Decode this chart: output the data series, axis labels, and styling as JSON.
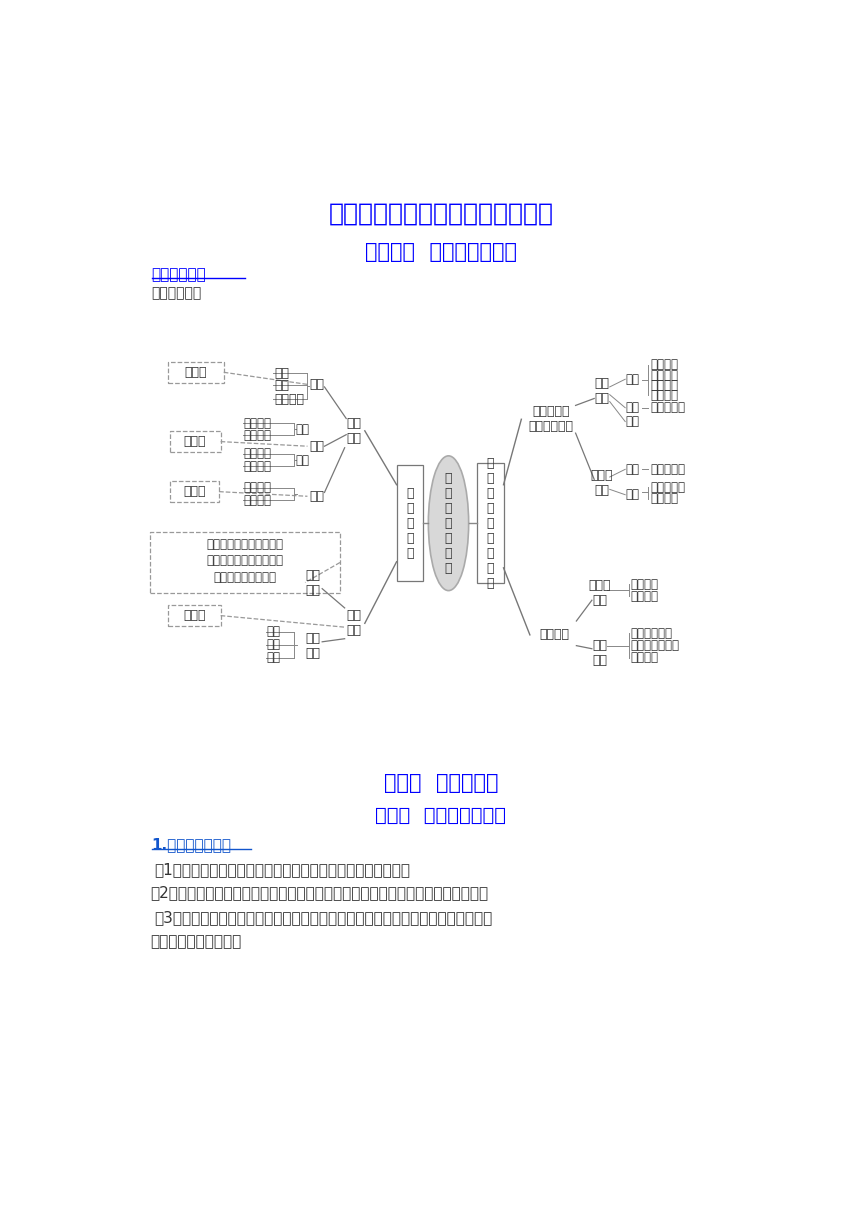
{
  "bg_color": "#ffffff",
  "title": "九年级下册道德与法治知识点汇总",
  "title_color": "#0000ff",
  "title_fontsize": 18,
  "unit_title": "第一单元  我们共同的世界",
  "unit_title_color": "#0000ff",
  "unit_title_fontsize": 15,
  "section_label": "单元思维导图",
  "section_label_color": "#0000ff",
  "section_label_fontsize": 11,
  "sdt_label": "【思维导图】",
  "sdt_label_color": "#333333",
  "sdt_label_fontsize": 10,
  "lesson_title": "第一课  同住地球村",
  "lesson_title_color": "#0000ff",
  "lesson_title_fontsize": 15,
  "frame_title": "第一框  开放互动的世界",
  "frame_title_color": "#0000ff",
  "frame_title_fontsize": 14,
  "point1_title": "1.当今世界的特点",
  "point1_title_color": "#1155cc",
  "point1_title_fontsize": 11,
  "point1_item1": "（1）开放的世界。（开放程度不断加深，开放范围不断扩展）",
  "point1_item2": "（2）发展的世界。（新技术新经济新业态蓬勃发展，正经历大发展大变革大调整）",
  "point1_item3a": "（3）紧密联系的世界。（现代交通通信贸易把全球各地的国家、人们联系在一起，",
  "point1_item3b": "彼此影响，休戚相关）",
  "point1_items_color": "#333333",
  "point1_items_fontsize": 11
}
